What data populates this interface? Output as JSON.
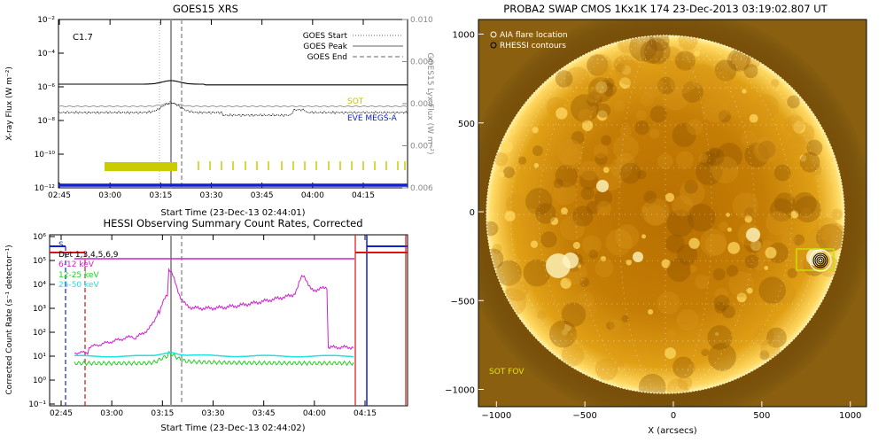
{
  "chart_data": [
    {
      "type": "line",
      "title": "GOES15 XRS",
      "xlabel": "Start Time (23-Dec-13 02:44:01)",
      "ylabel": "X-ray Flux (W m⁻²)",
      "ylabel_right": "GOES15 Lyx Flux (W m⁻²)",
      "x_ticks": [
        "02:45",
        "03:00",
        "03:15",
        "03:30",
        "03:45",
        "04:00",
        "04:15"
      ],
      "y_ticks": [
        "10⁻²",
        "10⁻⁴",
        "10⁻⁶",
        "10⁻⁸",
        "10⁻¹⁰",
        "10⁻¹²"
      ],
      "y_ticks_right": [
        "0.010",
        "0.009",
        "0.008",
        "0.007",
        "0.006"
      ],
      "flare_class": "C1.7",
      "legend": [
        {
          "label": "GOES Start",
          "style": "dotted"
        },
        {
          "label": "GOES Peak",
          "style": "solid"
        },
        {
          "label": "GOES End",
          "style": "dashed"
        }
      ],
      "legend_position": "top-right",
      "sot_label": "SOT",
      "eve_label": "EVE MEGS-A",
      "colors": {
        "sot": "#c8cc00",
        "eve": "#1020d0",
        "markers": "#999999"
      }
    },
    {
      "type": "line",
      "title": "HESSI Observing Summary Count Rates, Corrected",
      "xlabel": "Start Time (23-Dec-13 02:44:02)",
      "ylabel": "Corrected Count Rate (s⁻¹ detector⁻¹)",
      "x_ticks": [
        "02:45",
        "03:00",
        "03:15",
        "03:30",
        "03:45",
        "04:00",
        "04:15"
      ],
      "y_ticks": [
        "10⁶",
        "10⁵",
        "10⁴",
        "10³",
        "10²",
        "10¹",
        "10⁰",
        "10⁻¹"
      ],
      "legend_position": "top-left",
      "series": [
        {
          "name": "Det 1,3,4,5,6,9",
          "color": "#000000"
        },
        {
          "name": "6-12 keV",
          "color": "#d020d0"
        },
        {
          "name": "12-25 keV",
          "color": "#20d020"
        },
        {
          "name": "25-50 keV",
          "color": "#20e0e0"
        }
      ],
      "marker_s": "S"
    },
    {
      "type": "heatmap",
      "title": "PROBA2 SWAP CMOS 1Kx1K 174 23-Dec-2013 03:19:02.807 UT",
      "xlabel": "X (arcsecs)",
      "x_ticks": [
        "−1000",
        "−500",
        "0",
        "500",
        "1000"
      ],
      "y_ticks": [
        "1000",
        "500",
        "0",
        "−500",
        "−1000"
      ],
      "xlim": [
        -1100,
        1100
      ],
      "ylim": [
        -1100,
        1100
      ],
      "legend": [
        {
          "label": "AIA flare location"
        },
        {
          "label": "RHESSI contours"
        }
      ],
      "annotation": "SOT FOV",
      "flare_location": {
        "x": 830,
        "y": -270
      }
    }
  ]
}
